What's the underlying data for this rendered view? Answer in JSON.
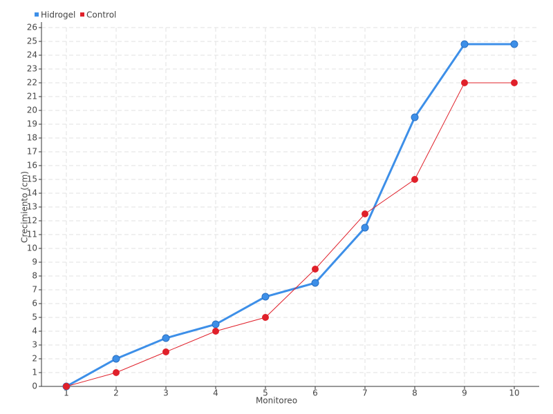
{
  "chart_data": {
    "type": "line",
    "x_label": "Monitoreo",
    "y_label": "Crecimiento (cm)",
    "categories": [
      "1",
      "2",
      "3",
      "4",
      "5",
      "6",
      "7",
      "8",
      "9",
      "10"
    ],
    "series": [
      {
        "name": "Hidrogel",
        "color": "#3d8fe8",
        "values": [
          0,
          2,
          3.5,
          4.5,
          6.5,
          7.5,
          11.5,
          19.5,
          24.8,
          24.8
        ]
      },
      {
        "name": "Control",
        "color": "#e0202a",
        "values": [
          0,
          1,
          2.5,
          4,
          5,
          8.5,
          12.5,
          15,
          22,
          22
        ]
      }
    ],
    "ylim": [
      0,
      26
    ],
    "yticks": [
      0,
      1,
      2,
      3,
      4,
      5,
      6,
      7,
      8,
      9,
      10,
      11,
      12,
      13,
      14,
      15,
      16,
      17,
      18,
      19,
      20,
      21,
      22,
      23,
      24,
      25,
      26
    ],
    "grid": true,
    "legend": "top-left"
  }
}
